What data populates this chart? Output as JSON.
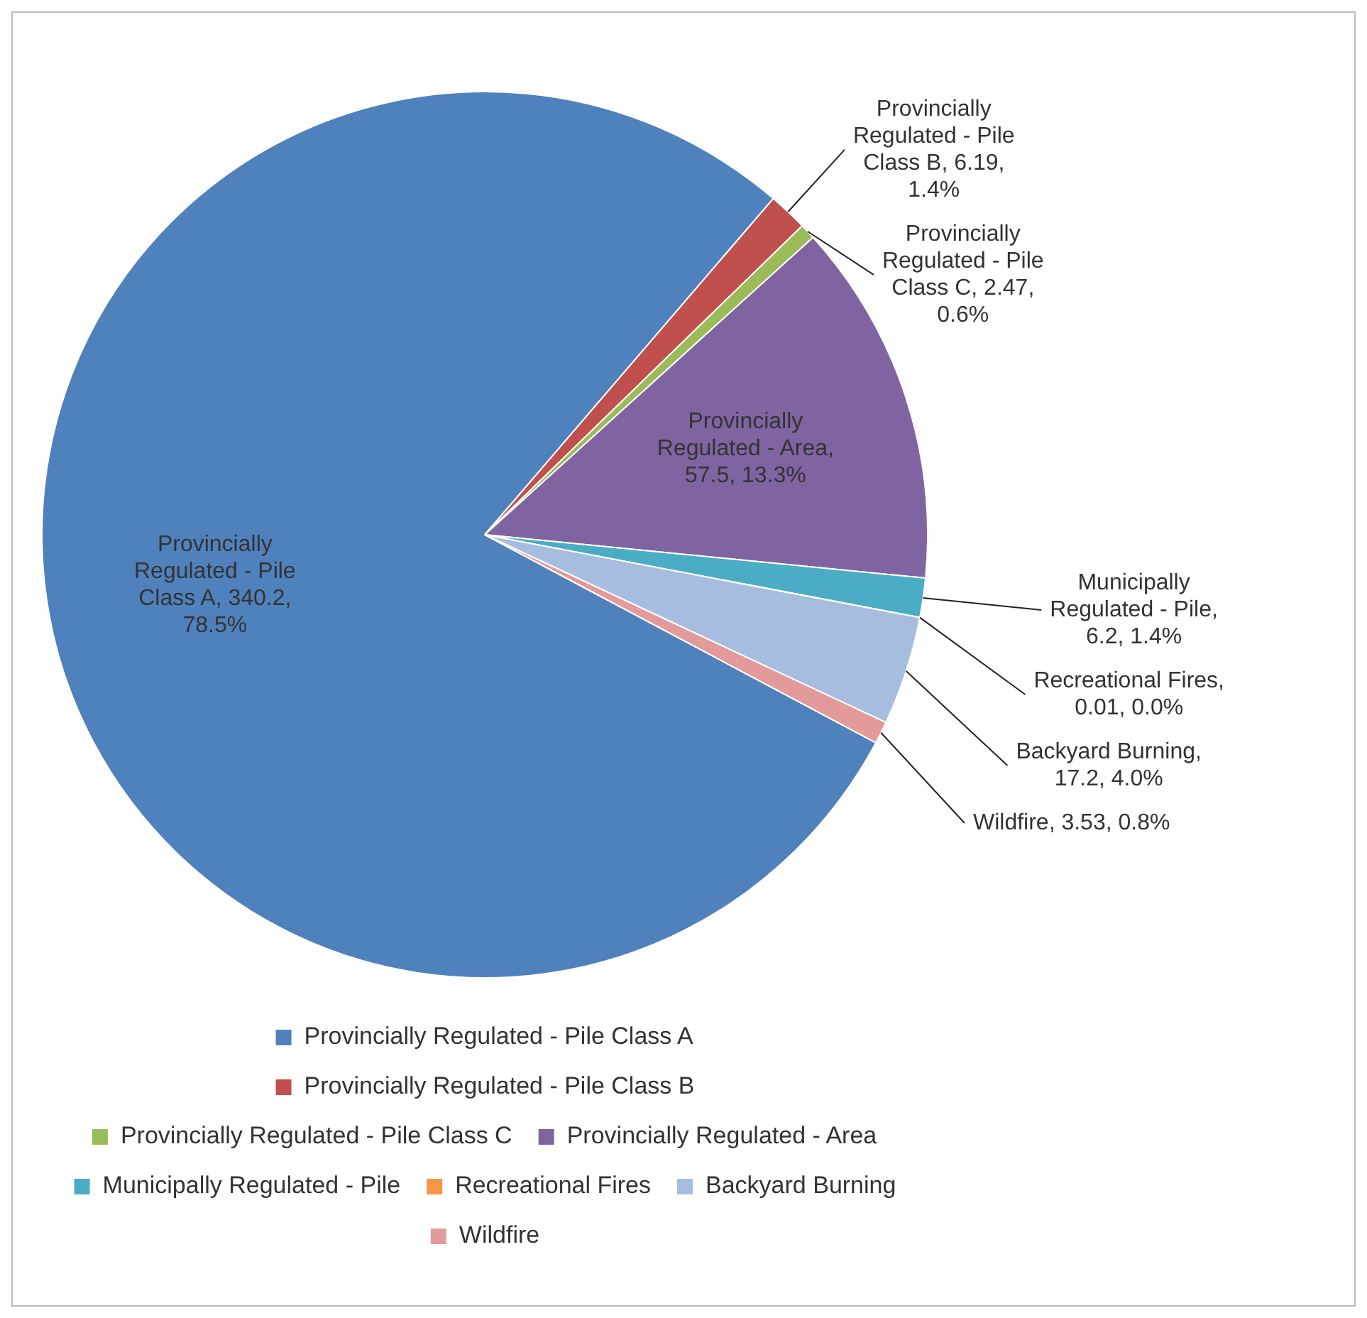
{
  "chart_data": {
    "type": "pie",
    "categories": [
      "Provincially Regulated - Pile Class A",
      "Provincially Regulated - Pile Class B",
      "Provincially Regulated - Pile Class C",
      "Provincially Regulated - Area",
      "Municipally Regulated - Pile",
      "Recreational Fires",
      "Backyard Burning",
      "Wildfire"
    ],
    "values": [
      340.2,
      6.19,
      2.47,
      57.5,
      6.2,
      0.01,
      17.2,
      3.53
    ],
    "colors": [
      "#4f81bd",
      "#c0504d",
      "#9bbb59",
      "#8064a2",
      "#4bacc6",
      "#f79646",
      "#a7bde0",
      "#e39a9a"
    ],
    "value_labels": [
      "Provincially Regulated - Pile Class A, 340.2, 78.5%",
      "Provincially Regulated - Pile Class B, 6.19, 1.4%",
      "Provincially Regulated - Pile Class C, 2.47, 0.6%",
      "Provincially Regulated - Area, 57.5, 13.3%",
      "Municipally Regulated - Pile, 6.2, 1.4%",
      "Recreational Fires, 0.01, 0.0%",
      "Backyard Burning, 17.2, 4.0%",
      "Wildfire, 3.53, 0.8%"
    ],
    "legend": "bottom"
  }
}
